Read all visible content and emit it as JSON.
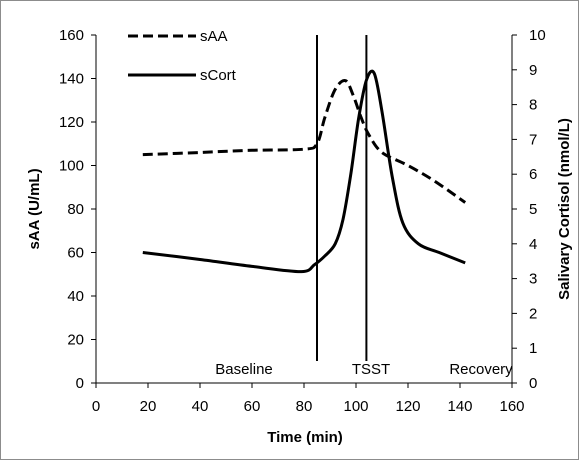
{
  "chart_data": {
    "type": "line",
    "title": "",
    "xlabel": "Time (min)",
    "ylabel_left": "sAA (U/mL)",
    "ylabel_right": "Salivary Cortisol (nmol/L)",
    "xlim": [
      0,
      160
    ],
    "ylim_left": [
      0,
      160
    ],
    "ylim_right": [
      0,
      10
    ],
    "x_ticks": [
      0,
      20,
      40,
      60,
      80,
      100,
      120,
      140,
      160
    ],
    "y_left_ticks": [
      0,
      20,
      40,
      60,
      80,
      100,
      120,
      140,
      160
    ],
    "y_right_ticks": [
      0,
      1,
      2,
      3,
      4,
      5,
      6,
      7,
      8,
      9,
      10
    ],
    "grid": false,
    "legend_position": "top-left",
    "series": [
      {
        "name": "sAA",
        "axis": "left",
        "style": "dashed",
        "color": "#000000",
        "x": [
          18,
          40,
          60,
          80,
          85,
          88,
          92,
          96,
          99,
          102,
          105,
          110,
          120,
          130,
          142
        ],
        "y": [
          105,
          106,
          107,
          107.5,
          110,
          122,
          135,
          139,
          132,
          122,
          114,
          106,
          100,
          93,
          83
        ]
      },
      {
        "name": "sCort",
        "axis": "right",
        "style": "solid",
        "color": "#000000",
        "x": [
          18,
          40,
          60,
          79,
          84,
          88,
          92,
          95,
          98,
          101,
          104,
          107,
          110,
          114,
          118,
          124,
          132,
          142
        ],
        "y": [
          3.75,
          3.55,
          3.35,
          3.2,
          3.4,
          3.65,
          4.0,
          4.7,
          6.0,
          7.6,
          8.7,
          8.9,
          7.8,
          5.9,
          4.6,
          4.0,
          3.75,
          3.45
        ]
      }
    ],
    "phase_markers": [
      {
        "x": 85,
        "label": "Baseline"
      },
      {
        "x": 104,
        "label": "TSST"
      }
    ],
    "phase_labels": [
      "Baseline",
      "TSST",
      "Recovery"
    ]
  }
}
